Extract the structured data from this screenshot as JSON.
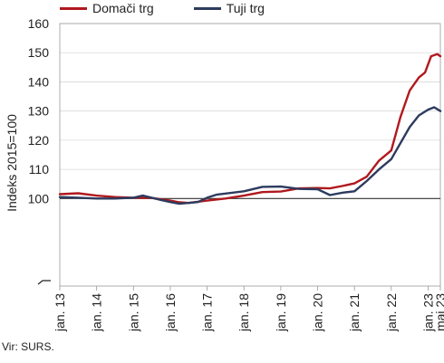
{
  "chart_data": {
    "type": "line",
    "ylabel": "Indeks 2015=100",
    "ylim": [
      70,
      160
    ],
    "yticks": [
      100,
      110,
      120,
      130,
      140,
      150,
      160
    ],
    "xticks": [
      "jan. 13",
      "jan. 14",
      "jan. 15",
      "jan. 16",
      "jan. 17",
      "jan. 18",
      "jan. 19",
      "jan. 20",
      "jan. 21",
      "jan. 22",
      "jan. 23",
      "maj 23"
    ],
    "x_start": "2013-01",
    "x_end": "2023-05",
    "reference_line": 100,
    "legend_position": "top-left",
    "series": [
      {
        "name": "Domači trg",
        "color": "#b0191e",
        "points": [
          [
            "2013-01",
            101.5
          ],
          [
            "2013-07",
            101.8
          ],
          [
            "2014-01",
            101.0
          ],
          [
            "2014-07",
            100.5
          ],
          [
            "2015-01",
            100.3
          ],
          [
            "2015-07",
            100.2
          ],
          [
            "2016-01",
            99.3
          ],
          [
            "2016-04",
            98.7
          ],
          [
            "2016-07",
            98.5
          ],
          [
            "2017-01",
            99.3
          ],
          [
            "2017-07",
            100.0
          ],
          [
            "2018-01",
            101.0
          ],
          [
            "2018-07",
            102.2
          ],
          [
            "2019-01",
            102.4
          ],
          [
            "2019-07",
            103.5
          ],
          [
            "2020-01",
            103.6
          ],
          [
            "2020-05",
            103.5
          ],
          [
            "2020-09",
            104.3
          ],
          [
            "2021-01",
            105.2
          ],
          [
            "2021-05",
            107.5
          ],
          [
            "2021-09",
            113.0
          ],
          [
            "2022-01",
            116.5
          ],
          [
            "2022-04",
            128.0
          ],
          [
            "2022-07",
            137.0
          ],
          [
            "2022-10",
            141.5
          ],
          [
            "2022-12",
            143.2
          ],
          [
            "2023-02",
            148.8
          ],
          [
            "2023-04",
            149.5
          ],
          [
            "2023-05",
            148.8
          ]
        ]
      },
      {
        "name": "Tuji trg",
        "color": "#2d3b5e",
        "points": [
          [
            "2013-01",
            100.5
          ],
          [
            "2013-07",
            100.3
          ],
          [
            "2014-01",
            100.0
          ],
          [
            "2014-07",
            100.0
          ],
          [
            "2015-01",
            100.3
          ],
          [
            "2015-04",
            101.0
          ],
          [
            "2015-10",
            99.5
          ],
          [
            "2016-01",
            98.8
          ],
          [
            "2016-04",
            98.2
          ],
          [
            "2016-10",
            98.8
          ],
          [
            "2017-01",
            100.3
          ],
          [
            "2017-04",
            101.3
          ],
          [
            "2018-01",
            102.5
          ],
          [
            "2018-07",
            104.0
          ],
          [
            "2019-01",
            104.1
          ],
          [
            "2019-07",
            103.3
          ],
          [
            "2020-01",
            103.2
          ],
          [
            "2020-05",
            101.2
          ],
          [
            "2020-09",
            102.0
          ],
          [
            "2021-01",
            102.5
          ],
          [
            "2021-05",
            106.0
          ],
          [
            "2021-09",
            110.0
          ],
          [
            "2022-01",
            113.5
          ],
          [
            "2022-07",
            124.5
          ],
          [
            "2022-10",
            128.5
          ],
          [
            "2023-01",
            130.5
          ],
          [
            "2023-03",
            131.3
          ],
          [
            "2023-05",
            130.0
          ]
        ]
      }
    ]
  },
  "source": "Vir: SURS."
}
